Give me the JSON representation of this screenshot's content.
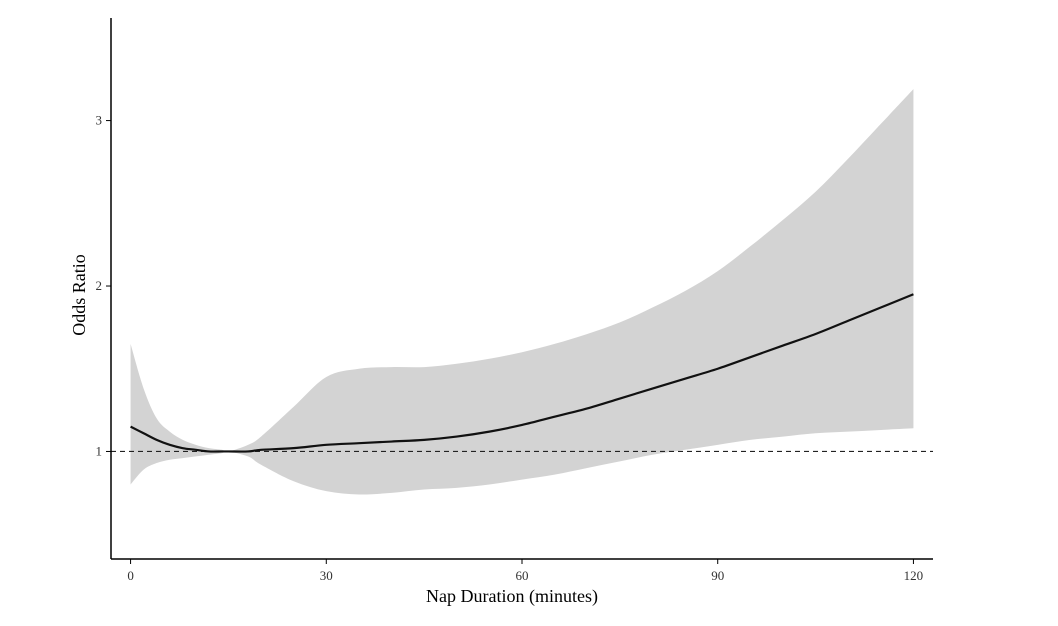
{
  "chart_data": {
    "type": "line",
    "xlabel": "Nap Duration (minutes)",
    "ylabel": "Odds Ratio",
    "xlim": [
      -3,
      123
    ],
    "ylim": [
      0.35,
      3.62
    ],
    "x_ticks": [
      0,
      30,
      60,
      90,
      120
    ],
    "y_ticks": [
      1,
      2,
      3
    ],
    "reference_line": {
      "y": 1,
      "style": "dashed"
    },
    "grid": false,
    "legend": "none",
    "colors": {
      "line": "#111111",
      "band": "#d3d3d3",
      "reference": "#222222",
      "axis": "#000000"
    },
    "series": [
      {
        "x": [
          0,
          2,
          4,
          6,
          8,
          10,
          12,
          14,
          15,
          18,
          20,
          25,
          30,
          35,
          40,
          45,
          50,
          55,
          60,
          65,
          70,
          75,
          80,
          85,
          90,
          95,
          100,
          105,
          110,
          115,
          120
        ],
        "y": [
          1.15,
          1.11,
          1.07,
          1.04,
          1.02,
          1.01,
          1.0,
          1.0,
          1.0,
          1.0,
          1.01,
          1.02,
          1.04,
          1.05,
          1.06,
          1.07,
          1.09,
          1.12,
          1.16,
          1.21,
          1.26,
          1.32,
          1.38,
          1.44,
          1.5,
          1.57,
          1.64,
          1.71,
          1.79,
          1.87,
          1.95
        ],
        "lower": [
          0.8,
          0.89,
          0.93,
          0.95,
          0.96,
          0.97,
          0.98,
          0.99,
          1.0,
          0.97,
          0.92,
          0.82,
          0.76,
          0.74,
          0.75,
          0.77,
          0.78,
          0.8,
          0.83,
          0.86,
          0.9,
          0.94,
          0.98,
          1.01,
          1.04,
          1.07,
          1.09,
          1.11,
          1.12,
          1.13,
          1.14
        ],
        "upper": [
          1.65,
          1.38,
          1.2,
          1.12,
          1.07,
          1.04,
          1.02,
          1.01,
          1.0,
          1.04,
          1.09,
          1.27,
          1.45,
          1.5,
          1.51,
          1.51,
          1.53,
          1.56,
          1.6,
          1.65,
          1.71,
          1.78,
          1.87,
          1.97,
          2.09,
          2.24,
          2.4,
          2.57,
          2.77,
          2.98,
          3.19
        ]
      }
    ]
  }
}
